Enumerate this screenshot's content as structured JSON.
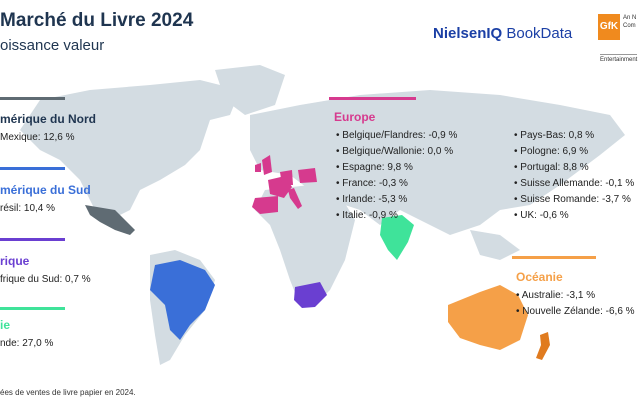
{
  "header": {
    "title": "Marché du Livre 2024",
    "subtitle": "oissance valeur"
  },
  "logos": {
    "nielsen_part1": "NielsenIQ",
    "nielsen_part2": " BookData",
    "gfk": "GfK",
    "gfk_line1": "An N",
    "gfk_line2": "Com",
    "gfk_ent": "Entertainment"
  },
  "regions": {
    "north_america": {
      "title": "mérique du Nord",
      "color": "#5f6b73",
      "items": [
        "Mexique: 12,6 %"
      ]
    },
    "south_america": {
      "title": "mérique du Sud",
      "color": "#3a6fd8",
      "items": [
        "résil: 10,4 %"
      ]
    },
    "africa": {
      "title": "rique",
      "color": "#6a3fd1",
      "items": [
        "frique du Sud: 0,7 %"
      ]
    },
    "asia": {
      "title": "ie",
      "color": "#3fe39a",
      "items": [
        "nde: 27,0 %"
      ]
    },
    "europe": {
      "title": "Europe",
      "color": "#d63a8e",
      "col1": [
        "• Belgique/Flandres: -0,9 %",
        "• Belgique/Wallonie: 0,0 %",
        "• Espagne: 9,8 %",
        "• France: -0,3 %",
        "• Irlande: -5,3 %",
        "• Italie: -0,9 %"
      ],
      "col2": [
        "• Pays-Bas: 0,8 %",
        "• Pologne: 6,9 %",
        "• Portugal: 8,8 %",
        "• Suisse Allemande: -0,1 %",
        "• Suisse Romande: -3,7 %",
        "• UK: -0,6 %"
      ]
    },
    "oceania": {
      "title": "Océanie",
      "color": "#f5a048",
      "items": [
        "• Australie: -3,1 %",
        "• Nouvelle Zélande: -6,6 %"
      ]
    }
  },
  "colors": {
    "land": "#d3dce2",
    "mexico": "#5f6b73",
    "brazil": "#3a6fd8",
    "south_africa": "#6a3fd1",
    "india": "#3fe39a",
    "europe": "#d63a8e",
    "australia": "#f5a048",
    "new_zealand": "#e07b1f"
  },
  "footnote": "ées de ventes de livre papier en 2024."
}
